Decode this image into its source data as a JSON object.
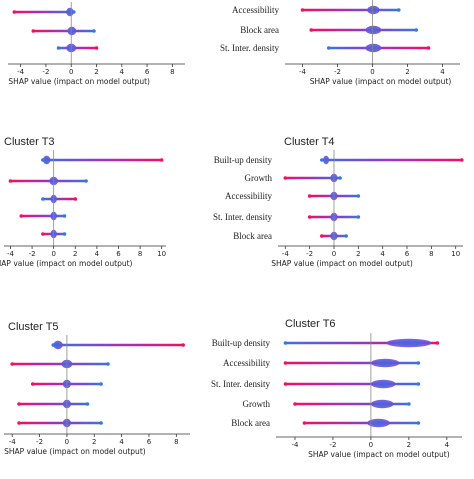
{
  "figure": {
    "xlabel": "SHAP value (impact on model output)"
  },
  "chart_data": [
    {
      "type": "scatter",
      "title": "",
      "features": [
        "",
        "",
        ""
      ],
      "x_ticks": [
        -4,
        -2,
        0,
        2,
        4,
        6,
        8
      ],
      "xlim": [
        -5,
        9
      ],
      "xlabel": "SHAP value (impact on model output)",
      "series": [
        {
          "x_min": -4.5,
          "x_max": 0.2,
          "dense_from": -0.4,
          "dense_to": 0.2
        },
        {
          "x_min": -3.0,
          "x_max": 1.8,
          "dense_from": -0.3,
          "dense_to": 0.4
        },
        {
          "x_min": -1.0,
          "x_max": 2.0,
          "dense_from": -0.4,
          "dense_to": 0.4
        }
      ]
    },
    {
      "type": "scatter",
      "title": "",
      "features": [
        "Accessibility",
        "Block area",
        "St. Inter. density"
      ],
      "x_ticks": [
        -4,
        -2,
        0,
        2,
        4
      ],
      "xlim": [
        -5,
        5
      ],
      "xlabel": "SHAP value (impact on model output)",
      "series": [
        {
          "x_min": -4.0,
          "x_max": 1.5,
          "dense_from": -0.3,
          "dense_to": 0.4
        },
        {
          "x_min": -3.5,
          "x_max": 2.5,
          "dense_from": -0.4,
          "dense_to": 0.5
        },
        {
          "x_min": -2.5,
          "x_max": 3.2,
          "dense_from": -0.4,
          "dense_to": 0.5
        }
      ]
    },
    {
      "type": "scatter",
      "title": "Cluster T3",
      "features": [
        "",
        "",
        "",
        "",
        ""
      ],
      "x_ticks": [
        -4,
        -2,
        0,
        2,
        4,
        6,
        8,
        10
      ],
      "xlim": [
        -4.6,
        10.4
      ],
      "xlabel": "SHAP value (impact on model output)",
      "series": [
        {
          "x_min": -1.0,
          "x_max": 10.0,
          "dense_from": -1.0,
          "dense_to": -0.3
        },
        {
          "x_min": -4.0,
          "x_max": 3.0,
          "dense_from": -0.4,
          "dense_to": 0.4
        },
        {
          "x_min": -1.0,
          "x_max": 2.0,
          "dense_from": -0.3,
          "dense_to": 0.3
        },
        {
          "x_min": -3.0,
          "x_max": 1.0,
          "dense_from": -0.3,
          "dense_to": 0.3
        },
        {
          "x_min": -1.0,
          "x_max": 1.0,
          "dense_from": -0.3,
          "dense_to": 0.3
        }
      ]
    },
    {
      "type": "scatter",
      "title": "Cluster T4",
      "features": [
        "Built-up density",
        "Growth",
        "Accessibility",
        "St. Inter. density",
        "Block area"
      ],
      "x_ticks": [
        -4,
        -2,
        0,
        2,
        4,
        6,
        8,
        10
      ],
      "xlim": [
        -4.6,
        10.6
      ],
      "xlabel": "SHAP value (impact on model output)",
      "series": [
        {
          "x_min": -1.0,
          "x_max": 10.5,
          "dense_from": -0.9,
          "dense_to": -0.4
        },
        {
          "x_min": -4.0,
          "x_max": 0.5,
          "dense_from": -0.3,
          "dense_to": 0.3
        },
        {
          "x_min": -2.0,
          "x_max": 2.0,
          "dense_from": -0.3,
          "dense_to": 0.3
        },
        {
          "x_min": -2.0,
          "x_max": 2.0,
          "dense_from": -0.3,
          "dense_to": 0.3
        },
        {
          "x_min": -1.0,
          "x_max": 1.0,
          "dense_from": -0.3,
          "dense_to": 0.3
        }
      ]
    },
    {
      "type": "scatter",
      "title": "Cluster T5",
      "features": [
        "",
        "",
        "",
        "",
        ""
      ],
      "x_ticks": [
        -4,
        -2,
        0,
        2,
        4,
        6,
        8
      ],
      "xlim": [
        -4.6,
        9.0
      ],
      "xlabel": "SHAP value (impact on model output)",
      "series": [
        {
          "x_min": -1.0,
          "x_max": 8.5,
          "dense_from": -1.0,
          "dense_to": -0.3
        },
        {
          "x_min": -4.0,
          "x_max": 3.0,
          "dense_from": -0.4,
          "dense_to": 0.4
        },
        {
          "x_min": -2.5,
          "x_max": 2.5,
          "dense_from": -0.3,
          "dense_to": 0.3
        },
        {
          "x_min": -3.5,
          "x_max": 1.5,
          "dense_from": -0.3,
          "dense_to": 0.3
        },
        {
          "x_min": -3.5,
          "x_max": 2.5,
          "dense_from": -0.3,
          "dense_to": 0.3
        }
      ]
    },
    {
      "type": "scatter",
      "title": "Cluster T6",
      "features": [
        "Built-up density",
        "Accessibility",
        "St. Inter. density",
        "Growth",
        "Block area"
      ],
      "x_ticks": [
        -4,
        -2,
        0,
        2,
        4
      ],
      "xlim": [
        -5.0,
        4.8
      ],
      "xlabel": "SHAP value (impact on model output)",
      "series": [
        {
          "x_min": -4.5,
          "x_max": 3.5,
          "dense_from": 0.8,
          "dense_to": 3.2
        },
        {
          "x_min": -4.5,
          "x_max": 2.5,
          "dense_from": 0.0,
          "dense_to": 1.5
        },
        {
          "x_min": -4.5,
          "x_max": 2.5,
          "dense_from": 0.0,
          "dense_to": 1.3
        },
        {
          "x_min": -4.0,
          "x_max": 2.0,
          "dense_from": 0.0,
          "dense_to": 1.2
        },
        {
          "x_min": -3.5,
          "x_max": 2.5,
          "dense_from": -0.2,
          "dense_to": 1.0
        }
      ]
    }
  ],
  "colors": {
    "high": "#ff0a55",
    "mid": "#8a3bd1",
    "low": "#1e88e5",
    "zero_line": "#888888",
    "axis": "#333333"
  }
}
